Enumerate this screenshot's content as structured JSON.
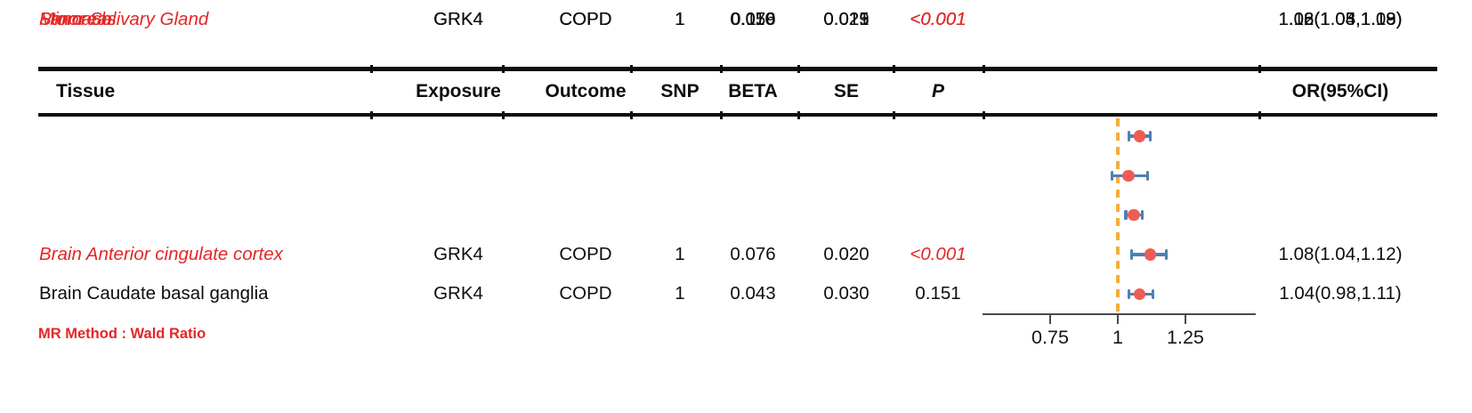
{
  "colors": {
    "ink": "#0D0D0D",
    "accent_red": "#E32726",
    "point_red": "#EE5D55",
    "ci_blue": "#4E7FB5",
    "reference_amber": "#F3AD3D",
    "axis_gray": "#4A4A4A",
    "background": "#FFFFFF"
  },
  "table": {
    "headers": {
      "tissue": "Tissue",
      "exposure": "Exposure",
      "outcome": "Outcome",
      "snp": "SNP",
      "beta": "BETA",
      "se": "SE",
      "p": "P",
      "or": "OR(95%CI)"
    },
    "rows": [
      {
        "tissue": "Brain Anterior cingulate cortex",
        "exposure": "GRK4",
        "outcome": "COPD",
        "snp": "1",
        "beta": "0.076",
        "se": "0.020",
        "p": "<0.001",
        "or_ci": "1.08(1.04,1.12)",
        "significant": true
      },
      {
        "tissue": "Brain Caudate basal ganglia",
        "exposure": "GRK4",
        "outcome": "COPD",
        "snp": "1",
        "beta": "0.043",
        "se": "0.030",
        "p": "0.151",
        "or_ci": "1.04(0.98,1.11)",
        "significant": false
      },
      {
        "tissue": "Minor Salivary Gland",
        "exposure": "GRK4",
        "outcome": "COPD",
        "snp": "1",
        "beta": "0.056",
        "se": "0.015",
        "p": "<0.001",
        "or_ci": "1.06(1.03,1.09)",
        "significant": true
      },
      {
        "tissue": "Pancreas",
        "exposure": "GRK4",
        "outcome": "COPD",
        "snp": "1",
        "beta": "0.110",
        "se": "0.029",
        "p": "<0.001",
        "or_ci": "1.12(1.05,1.18)",
        "significant": true
      },
      {
        "tissue": "Stomach",
        "exposure": "GRK4",
        "outcome": "COPD",
        "snp": "1",
        "beta": "0.079",
        "se": "0.021",
        "p": "<0.001",
        "or_ci": "1.08(1.04,1.13)",
        "significant": true
      }
    ]
  },
  "footer_note": "MR Method : Wald Ratio",
  "chart_data": {
    "type": "forest",
    "title": "",
    "xlabel": "OR (95% CI)",
    "xlim": [
      0.5,
      1.51
    ],
    "reference_line": 1,
    "grid": false,
    "ticks": [
      {
        "value": 0.75,
        "label": "0.75"
      },
      {
        "value": 1,
        "label": "1"
      },
      {
        "value": 1.25,
        "label": "1.25"
      }
    ],
    "rows": [
      {
        "label": "Brain Anterior cingulate cortex",
        "or": 1.08,
        "ci_low": 1.04,
        "ci_high": 1.12
      },
      {
        "label": "Brain Caudate basal ganglia",
        "or": 1.04,
        "ci_low": 0.98,
        "ci_high": 1.11
      },
      {
        "label": "Minor Salivary Gland",
        "or": 1.06,
        "ci_low": 1.03,
        "ci_high": 1.09
      },
      {
        "label": "Pancreas",
        "or": 1.12,
        "ci_low": 1.05,
        "ci_high": 1.18
      },
      {
        "label": "Stomach",
        "or": 1.08,
        "ci_low": 1.04,
        "ci_high": 1.13
      }
    ]
  }
}
